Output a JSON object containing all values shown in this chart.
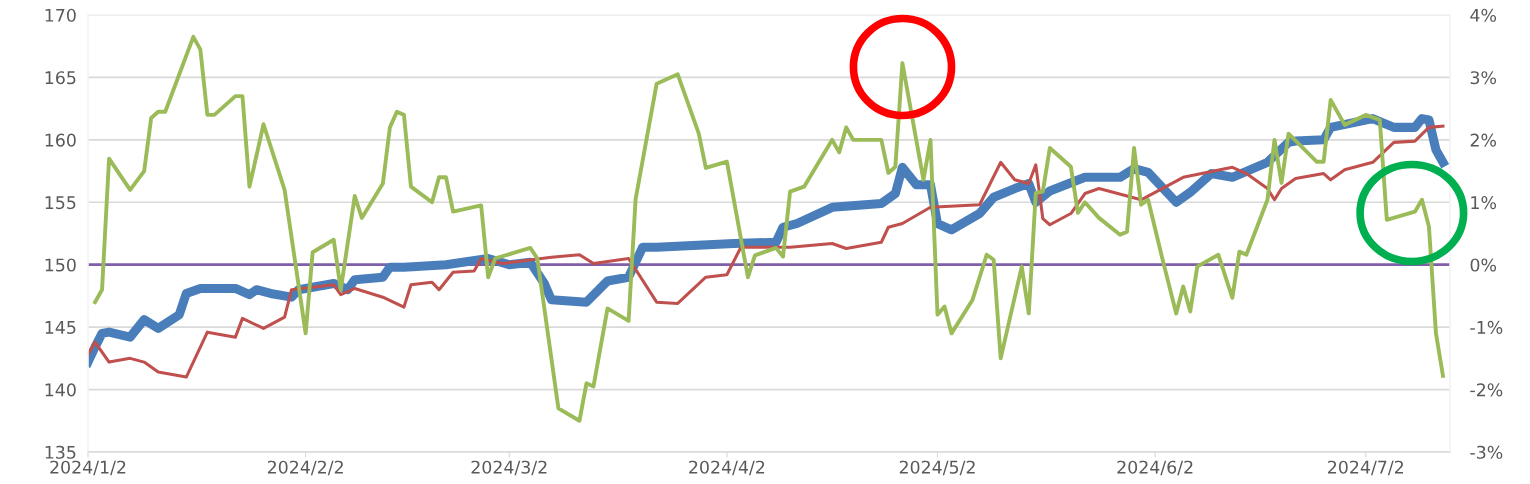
{
  "chart_data": {
    "type": "line",
    "xlim": [
      "2024-01-02",
      "2024-07-14"
    ],
    "xticks": [
      {
        "value": "2024-01-02",
        "label": "2024/1/2"
      },
      {
        "value": "2024-02-02",
        "label": "2024/2/2"
      },
      {
        "value": "2024-03-02",
        "label": "2024/3/2"
      },
      {
        "value": "2024-04-02",
        "label": "2024/4/2"
      },
      {
        "value": "2024-05-02",
        "label": "2024/5/2"
      },
      {
        "value": "2024-06-02",
        "label": "2024/6/2"
      },
      {
        "value": "2024-07-02",
        "label": "2024/7/2"
      }
    ],
    "ylim": [
      135,
      170
    ],
    "yticks": [
      135,
      140,
      145,
      150,
      155,
      160,
      165,
      170
    ],
    "y2lim": [
      -3,
      4
    ],
    "y2ticks": [
      {
        "value": -3,
        "label": "-3%"
      },
      {
        "value": -2,
        "label": "-2%"
      },
      {
        "value": -1,
        "label": "-1%"
      },
      {
        "value": 0,
        "label": "0%"
      },
      {
        "value": 1,
        "label": "1%"
      },
      {
        "value": 2,
        "label": "2%"
      },
      {
        "value": 3,
        "label": "3%"
      },
      {
        "value": 4,
        "label": "4%"
      }
    ],
    "grid": "y",
    "marker": "none",
    "line_style": "solid",
    "ref_lines": [
      {
        "axis": "y",
        "value": 150,
        "color": "#7f5fa8",
        "line_style": "solid"
      }
    ],
    "series": [
      {
        "color": "#4a7ebb",
        "x": [
          "2024-01-02",
          "2024-01-03",
          "2024-01-04",
          "2024-01-05",
          "2024-01-08",
          "2024-01-10",
          "2024-01-12",
          "2024-01-15",
          "2024-01-16",
          "2024-01-18",
          "2024-01-23",
          "2024-01-25",
          "2024-01-26",
          "2024-01-28",
          "2024-01-31",
          "2024-02-01",
          "2024-02-06",
          "2024-02-08",
          "2024-02-09",
          "2024-02-13",
          "2024-02-14",
          "2024-02-16",
          "2024-02-22",
          "2024-02-28",
          "2024-03-02",
          "2024-03-05",
          "2024-03-07",
          "2024-03-08",
          "2024-03-13",
          "2024-03-16",
          "2024-03-19",
          "2024-03-21",
          "2024-03-23",
          "2024-04-03",
          "2024-04-09",
          "2024-04-10",
          "2024-04-12",
          "2024-04-17",
          "2024-04-24",
          "2024-04-26",
          "2024-04-27",
          "2024-04-29",
          "2024-05-01",
          "2024-05-02",
          "2024-05-04",
          "2024-05-08",
          "2024-05-10",
          "2024-05-13",
          "2024-05-15",
          "2024-05-16",
          "2024-05-18",
          "2024-05-23",
          "2024-05-28",
          "2024-05-30",
          "2024-06-01",
          "2024-06-05",
          "2024-06-07",
          "2024-06-10",
          "2024-06-13",
          "2024-06-18",
          "2024-06-21",
          "2024-06-22",
          "2024-06-26",
          "2024-06-27",
          "2024-07-03",
          "2024-07-06",
          "2024-07-09",
          "2024-07-10",
          "2024-07-11",
          "2024-07-12",
          "2024-07-13"
        ],
        "values": [
          142.2,
          143.4,
          144.5,
          144.6,
          144.2,
          145.6,
          144.9,
          146.0,
          147.7,
          148.1,
          148.1,
          147.6,
          148.0,
          147.7,
          147.4,
          148.0,
          148.5,
          148.0,
          148.8,
          149.0,
          149.8,
          149.8,
          150.0,
          150.5,
          150.0,
          150.2,
          148.5,
          147.2,
          147.0,
          148.7,
          149.0,
          151.4,
          151.4,
          151.7,
          151.8,
          153.0,
          153.3,
          154.6,
          154.9,
          155.7,
          157.8,
          156.4,
          156.4,
          153.3,
          152.8,
          154.1,
          155.4,
          156.1,
          156.5,
          155.0,
          155.9,
          157.0,
          157.0,
          157.7,
          157.4,
          155.0,
          155.8,
          157.3,
          157.0,
          158.2,
          159.8,
          159.9,
          160.0,
          161.0,
          161.7,
          161.0,
          161.0,
          161.7,
          161.6,
          159.2,
          158.2
        ]
      },
      {
        "color": "#c0504d",
        "x": [
          "2024-01-02",
          "2024-01-03",
          "2024-01-05",
          "2024-01-08",
          "2024-01-10",
          "2024-01-12",
          "2024-01-16",
          "2024-01-19",
          "2024-01-23",
          "2024-01-24",
          "2024-01-27",
          "2024-01-30",
          "2024-01-31",
          "2024-02-06",
          "2024-02-07",
          "2024-02-09",
          "2024-02-13",
          "2024-02-16",
          "2024-02-17",
          "2024-02-20",
          "2024-02-21",
          "2024-02-23",
          "2024-02-26",
          "2024-02-27",
          "2024-03-01",
          "2024-03-08",
          "2024-03-12",
          "2024-03-14",
          "2024-03-19",
          "2024-03-23",
          "2024-03-26",
          "2024-03-30",
          "2024-04-02",
          "2024-04-04",
          "2024-04-11",
          "2024-04-17",
          "2024-04-19",
          "2024-04-24",
          "2024-04-25",
          "2024-04-27",
          "2024-05-01",
          "2024-05-08",
          "2024-05-11",
          "2024-05-13",
          "2024-05-15",
          "2024-05-16",
          "2024-05-17",
          "2024-05-18",
          "2024-05-21",
          "2024-05-23",
          "2024-05-25",
          "2024-05-31",
          "2024-06-06",
          "2024-06-13",
          "2024-06-15",
          "2024-06-18",
          "2024-06-19",
          "2024-06-20",
          "2024-06-22",
          "2024-06-26",
          "2024-06-27",
          "2024-06-29",
          "2024-07-03",
          "2024-07-06",
          "2024-07-09",
          "2024-07-11",
          "2024-07-13"
        ],
        "values": [
          142.8,
          143.8,
          142.2,
          142.5,
          142.2,
          141.4,
          141.0,
          144.6,
          144.2,
          145.7,
          144.9,
          145.8,
          148.0,
          148.4,
          147.6,
          148.1,
          147.4,
          146.6,
          148.4,
          148.6,
          148.0,
          149.4,
          149.5,
          150.5,
          150.1,
          150.6,
          150.8,
          150.1,
          150.5,
          147.0,
          146.9,
          149.0,
          149.2,
          151.4,
          151.4,
          151.7,
          151.3,
          151.8,
          153.0,
          153.3,
          154.6,
          154.8,
          158.2,
          156.8,
          156.5,
          158.0,
          153.7,
          153.2,
          154.1,
          155.7,
          156.1,
          155.2,
          157.0,
          157.8,
          157.3,
          156.1,
          155.2,
          156.1,
          156.9,
          157.3,
          156.8,
          157.6,
          158.2,
          159.8,
          159.9,
          161.0,
          161.1
        ]
      },
      {
        "color": "#9bbb59",
        "axis": "y2",
        "x": [
          "2024-01-03",
          "2024-01-04",
          "2024-01-05",
          "2024-01-08",
          "2024-01-10",
          "2024-01-11",
          "2024-01-12",
          "2024-01-13",
          "2024-01-17",
          "2024-01-18",
          "2024-01-19",
          "2024-01-20",
          "2024-01-23",
          "2024-01-24",
          "2024-01-25",
          "2024-01-27",
          "2024-01-30",
          "2024-02-02",
          "2024-02-03",
          "2024-02-06",
          "2024-02-07",
          "2024-02-09",
          "2024-02-10",
          "2024-02-13",
          "2024-02-14",
          "2024-02-15",
          "2024-02-16",
          "2024-02-17",
          "2024-02-20",
          "2024-02-21",
          "2024-02-22",
          "2024-02-23",
          "2024-02-27",
          "2024-02-28",
          "2024-02-29",
          "2024-03-05",
          "2024-03-06",
          "2024-03-09",
          "2024-03-12",
          "2024-03-13",
          "2024-03-14",
          "2024-03-16",
          "2024-03-19",
          "2024-03-20",
          "2024-03-23",
          "2024-03-26",
          "2024-03-29",
          "2024-03-30",
          "2024-04-02",
          "2024-04-05",
          "2024-04-06",
          "2024-04-09",
          "2024-04-10",
          "2024-04-11",
          "2024-04-13",
          "2024-04-17",
          "2024-04-18",
          "2024-04-19",
          "2024-04-20",
          "2024-04-24",
          "2024-04-25",
          "2024-04-26",
          "2024-04-27",
          "2024-04-30",
          "2024-05-01",
          "2024-05-02",
          "2024-05-03",
          "2024-05-04",
          "2024-05-07",
          "2024-05-09",
          "2024-05-10",
          "2024-05-11",
          "2024-05-14",
          "2024-05-15",
          "2024-05-16",
          "2024-05-17",
          "2024-05-18",
          "2024-05-21",
          "2024-05-22",
          "2024-05-23",
          "2024-05-25",
          "2024-05-28",
          "2024-05-29",
          "2024-05-30",
          "2024-05-31",
          "2024-06-01",
          "2024-06-03",
          "2024-06-05",
          "2024-06-06",
          "2024-06-07",
          "2024-06-08",
          "2024-06-11",
          "2024-06-13",
          "2024-06-14",
          "2024-06-15",
          "2024-06-18",
          "2024-06-19",
          "2024-06-20",
          "2024-06-21",
          "2024-06-25",
          "2024-06-26",
          "2024-06-27",
          "2024-06-29",
          "2024-07-02",
          "2024-07-04",
          "2024-07-05",
          "2024-07-09",
          "2024-07-10",
          "2024-07-11",
          "2024-07-12",
          "2024-07-13"
        ],
        "values": [
          -0.6,
          -0.4,
          1.7,
          1.2,
          1.5,
          2.35,
          2.45,
          2.45,
          3.65,
          3.45,
          2.4,
          2.4,
          2.7,
          2.7,
          1.25,
          2.25,
          1.2,
          -1.1,
          0.2,
          0.4,
          -0.4,
          1.1,
          0.75,
          1.3,
          2.2,
          2.45,
          2.4,
          1.25,
          1.0,
          1.4,
          1.4,
          0.85,
          0.95,
          -0.2,
          0.1,
          0.27,
          0.1,
          -2.3,
          -2.5,
          -1.9,
          -1.95,
          -0.7,
          -0.9,
          1.05,
          2.9,
          3.05,
          2.1,
          1.55,
          1.65,
          -0.2,
          0.15,
          0.27,
          0.13,
          1.17,
          1.25,
          2.0,
          1.8,
          2.2,
          2.0,
          2.0,
          1.47,
          1.57,
          3.23,
          1.36,
          2.0,
          -0.8,
          -0.67,
          -1.1,
          -0.56,
          0.16,
          0.08,
          -1.5,
          -0.03,
          -0.78,
          1.15,
          1.17,
          1.87,
          1.57,
          0.83,
          1.0,
          0.75,
          0.48,
          0.53,
          1.87,
          0.96,
          1.04,
          0.11,
          -0.78,
          -0.35,
          -0.75,
          -0.03,
          0.16,
          -0.53,
          0.21,
          0.16,
          1.04,
          2.0,
          1.31,
          2.1,
          1.65,
          1.65,
          2.64,
          2.24,
          2.4,
          2.32,
          0.72,
          0.85,
          1.04,
          0.61,
          -1.1,
          -1.78
        ]
      }
    ]
  }
}
